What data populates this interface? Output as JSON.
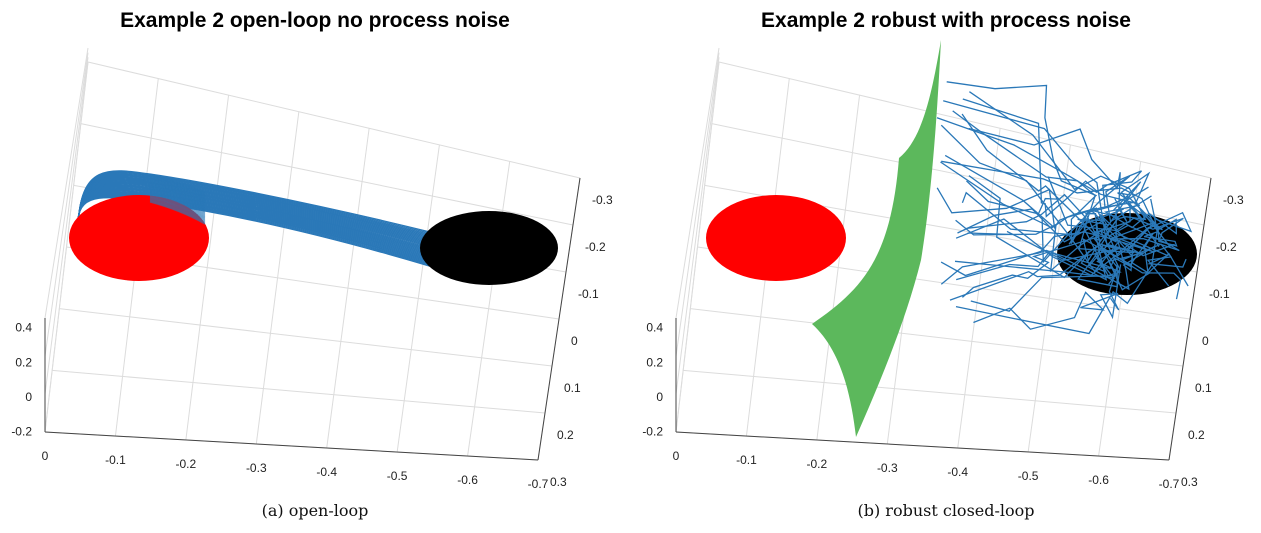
{
  "chart_data": [
    {
      "type": "line",
      "title": "Example 2 open-loop no process noise",
      "caption": "(a) open-loop",
      "x_ticks": [
        "0",
        "-0.1",
        "-0.2",
        "-0.3",
        "-0.4",
        "-0.5",
        "-0.6",
        "-0.7"
      ],
      "y_ticks": [
        "-0.3",
        "-0.2",
        "-0.1",
        "0",
        "0.1",
        "0.2",
        "0.3"
      ],
      "z_ticks": [
        "0.4",
        "0.2",
        "0",
        "-0.2"
      ],
      "xlim": [
        0,
        -0.7
      ],
      "ylim": [
        -0.3,
        0.3
      ],
      "zlim": [
        -0.2,
        0.4
      ],
      "grid": true,
      "colors": {
        "start": "#ff0000",
        "goal": "#000000",
        "trajectory": "#2a78b8"
      },
      "trajectory_count": 30
    },
    {
      "type": "line",
      "title": "Example 2 robust with process noise",
      "caption": "(b) robust closed-loop",
      "x_ticks": [
        "0",
        "-0.1",
        "-0.2",
        "-0.3",
        "-0.4",
        "-0.5",
        "-0.6",
        "-0.7"
      ],
      "y_ticks": [
        "-0.3",
        "-0.2",
        "-0.1",
        "0",
        "0.1",
        "0.2",
        "0.3"
      ],
      "z_ticks": [
        "0.4",
        "0.2",
        "0",
        "-0.2"
      ],
      "xlim": [
        0,
        -0.7
      ],
      "ylim": [
        -0.3,
        0.3
      ],
      "zlim": [
        -0.2,
        0.4
      ],
      "grid": true,
      "colors": {
        "start": "#ff0000",
        "goal": "#000000",
        "trajectory": "#2a78b8",
        "obstacle": "#5cb85c"
      },
      "trajectory_count": 30
    }
  ]
}
